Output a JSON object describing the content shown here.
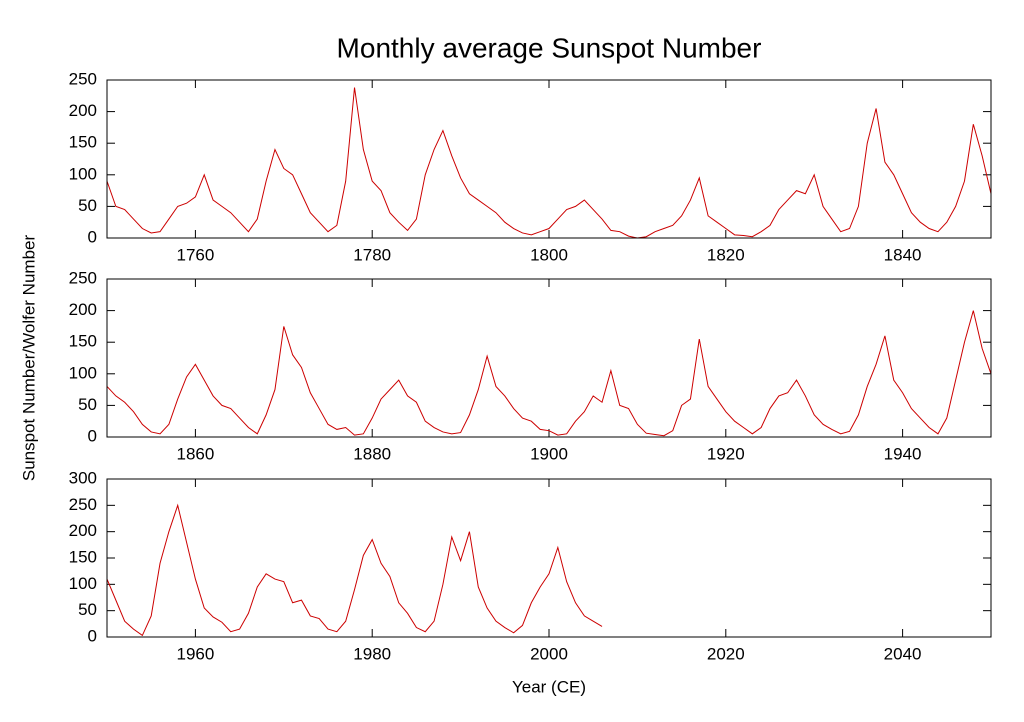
{
  "chart_data": [
    {
      "type": "line",
      "title": "Monthly average Sunspot Number",
      "x": [
        1750,
        1751,
        1752,
        1753,
        1754,
        1755,
        1756,
        1757,
        1758,
        1759,
        1760,
        1761,
        1762,
        1763,
        1764,
        1765,
        1766,
        1767,
        1768,
        1769,
        1770,
        1771,
        1772,
        1773,
        1774,
        1775,
        1776,
        1777,
        1778,
        1779,
        1780,
        1781,
        1782,
        1783,
        1784,
        1785,
        1786,
        1787,
        1788,
        1789,
        1790,
        1791,
        1792,
        1793,
        1794,
        1795,
        1796,
        1797,
        1798,
        1799,
        1800,
        1801,
        1802,
        1803,
        1804,
        1805,
        1806,
        1807,
        1808,
        1809,
        1810,
        1811,
        1812,
        1813,
        1814,
        1815,
        1816,
        1817,
        1818,
        1819,
        1820,
        1821,
        1822,
        1823,
        1824,
        1825,
        1826,
        1827,
        1828,
        1829,
        1830,
        1831,
        1832,
        1833,
        1834,
        1835,
        1836,
        1837,
        1838,
        1839,
        1840,
        1841,
        1842,
        1843,
        1844,
        1845,
        1846,
        1847,
        1848,
        1849,
        1850
      ],
      "series": [
        {
          "color": "#cc0000",
          "values": [
            90,
            50,
            45,
            30,
            15,
            8,
            10,
            30,
            50,
            55,
            65,
            100,
            60,
            50,
            40,
            25,
            10,
            30,
            90,
            140,
            110,
            100,
            70,
            40,
            25,
            10,
            20,
            90,
            238,
            140,
            90,
            75,
            40,
            25,
            12,
            30,
            100,
            140,
            170,
            130,
            95,
            70,
            60,
            50,
            40,
            25,
            15,
            8,
            5,
            10,
            15,
            30,
            45,
            50,
            60,
            45,
            30,
            12,
            10,
            3,
            0,
            2,
            10,
            15,
            20,
            35,
            60,
            95,
            35,
            25,
            15,
            5,
            4,
            2,
            10,
            20,
            45,
            60,
            75,
            70,
            100,
            50,
            30,
            10,
            15,
            50,
            150,
            205,
            120,
            100,
            70,
            40,
            25,
            15,
            10,
            25,
            50,
            90,
            180,
            130,
            70
          ]
        }
      ],
      "xlim": [
        1750,
        1850
      ],
      "xticks": [
        1760,
        1780,
        1800,
        1820,
        1840
      ],
      "ylim": [
        0,
        250
      ],
      "yticks": [
        0,
        50,
        100,
        150,
        200,
        250
      ]
    },
    {
      "type": "line",
      "y_label": "Sunspot Number/Wolfer Number",
      "x": [
        1850,
        1851,
        1852,
        1853,
        1854,
        1855,
        1856,
        1857,
        1858,
        1859,
        1860,
        1861,
        1862,
        1863,
        1864,
        1865,
        1866,
        1867,
        1868,
        1869,
        1870,
        1871,
        1872,
        1873,
        1874,
        1875,
        1876,
        1877,
        1878,
        1879,
        1880,
        1881,
        1882,
        1883,
        1884,
        1885,
        1886,
        1887,
        1888,
        1889,
        1890,
        1891,
        1892,
        1893,
        1894,
        1895,
        1896,
        1897,
        1898,
        1899,
        1900,
        1901,
        1902,
        1903,
        1904,
        1905,
        1906,
        1907,
        1908,
        1909,
        1910,
        1911,
        1912,
        1913,
        1914,
        1915,
        1916,
        1917,
        1918,
        1919,
        1920,
        1921,
        1922,
        1923,
        1924,
        1925,
        1926,
        1927,
        1928,
        1929,
        1930,
        1931,
        1932,
        1933,
        1934,
        1935,
        1936,
        1937,
        1938,
        1939,
        1940,
        1941,
        1942,
        1943,
        1944,
        1945,
        1946,
        1947,
        1948,
        1949,
        1950
      ],
      "series": [
        {
          "color": "#cc0000",
          "values": [
            80,
            65,
            55,
            40,
            20,
            8,
            5,
            20,
            60,
            95,
            115,
            90,
            65,
            50,
            45,
            30,
            15,
            5,
            35,
            75,
            175,
            130,
            110,
            70,
            45,
            20,
            12,
            15,
            3,
            5,
            30,
            60,
            75,
            90,
            65,
            55,
            25,
            15,
            8,
            5,
            7,
            35,
            75,
            128,
            80,
            65,
            45,
            30,
            25,
            12,
            10,
            3,
            5,
            25,
            40,
            65,
            55,
            105,
            50,
            45,
            20,
            6,
            4,
            2,
            10,
            50,
            60,
            155,
            80,
            60,
            40,
            25,
            15,
            5,
            15,
            45,
            65,
            70,
            90,
            65,
            35,
            20,
            12,
            5,
            9,
            35,
            80,
            115,
            160,
            90,
            70,
            45,
            30,
            15,
            5,
            30,
            90,
            150,
            200,
            140,
            100
          ]
        }
      ],
      "xlim": [
        1850,
        1950
      ],
      "xticks": [
        1860,
        1880,
        1900,
        1920,
        1940
      ],
      "ylim": [
        0,
        250
      ],
      "yticks": [
        0,
        50,
        100,
        150,
        200,
        250
      ]
    },
    {
      "type": "line",
      "x_label": "Year (CE)",
      "x": [
        1950,
        1951,
        1952,
        1953,
        1954,
        1955,
        1956,
        1957,
        1958,
        1959,
        1960,
        1961,
        1962,
        1963,
        1964,
        1965,
        1966,
        1967,
        1968,
        1969,
        1970,
        1971,
        1972,
        1973,
        1974,
        1975,
        1976,
        1977,
        1978,
        1979,
        1980,
        1981,
        1982,
        1983,
        1984,
        1985,
        1986,
        1987,
        1988,
        1989,
        1990,
        1991,
        1992,
        1993,
        1994,
        1995,
        1996,
        1997,
        1998,
        1999,
        2000,
        2001,
        2002,
        2003,
        2004,
        2005,
        2006
      ],
      "series": [
        {
          "color": "#cc0000",
          "values": [
            110,
            70,
            30,
            15,
            3,
            40,
            140,
            200,
            250,
            180,
            110,
            55,
            38,
            28,
            10,
            15,
            45,
            95,
            120,
            110,
            105,
            65,
            70,
            40,
            35,
            15,
            10,
            30,
            90,
            155,
            185,
            140,
            115,
            65,
            45,
            18,
            10,
            30,
            100,
            190,
            145,
            200,
            95,
            55,
            30,
            18,
            8,
            22,
            65,
            95,
            120,
            170,
            105,
            65,
            40,
            30,
            20
          ]
        }
      ],
      "xlim": [
        1950,
        2050
      ],
      "xticks": [
        1960,
        1980,
        2000,
        2020,
        2040
      ],
      "ylim": [
        0,
        300
      ],
      "yticks": [
        0,
        50,
        100,
        150,
        200,
        250,
        300
      ]
    }
  ]
}
